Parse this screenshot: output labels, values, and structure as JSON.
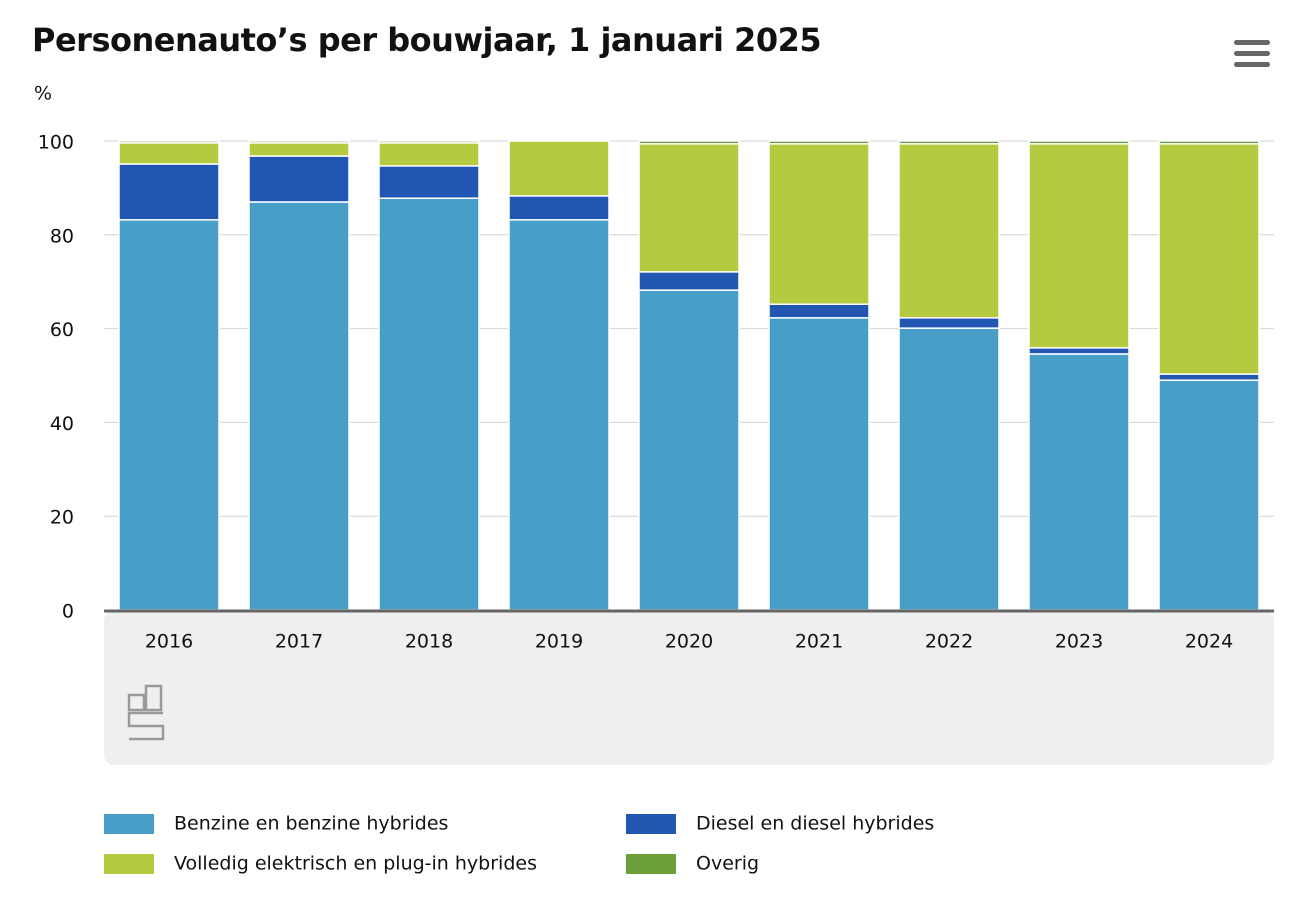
{
  "chart_data": {
    "type": "stacked_bar",
    "title": "Personenauto’s per bouwjaar, 1 januari 2025",
    "y_label": "%",
    "categories": [
      "2016",
      "2017",
      "2018",
      "2019",
      "2020",
      "2021",
      "2022",
      "2023",
      "2024"
    ],
    "series": [
      {
        "name": "Benzine en benzine hybrides",
        "color": "#479fc8",
        "values": [
          83.2,
          87.0,
          87.8,
          83.2,
          68.2,
          62.3,
          60.1,
          54.6,
          49.0
        ]
      },
      {
        "name": "Diesel en diesel hybrides",
        "color": "#2256b3",
        "values": [
          11.9,
          9.8,
          6.9,
          5.1,
          3.9,
          2.9,
          2.2,
          1.3,
          1.3
        ]
      },
      {
        "name": "Volledig elektrisch en plug-in hybrides",
        "color": "#b6ca40",
        "values": [
          4.5,
          2.8,
          4.9,
          11.7,
          27.3,
          34.2,
          37.1,
          43.5,
          49.1
        ]
      },
      {
        "name": "Overig",
        "color": "#6a9f3a",
        "values": [
          0.4,
          0.4,
          0.4,
          0.0,
          0.6,
          0.6,
          0.6,
          0.6,
          0.6
        ]
      }
    ],
    "ylim": [
      0,
      100
    ],
    "yticks": [
      0,
      20,
      40,
      60,
      80,
      100
    ],
    "grid": true
  }
}
